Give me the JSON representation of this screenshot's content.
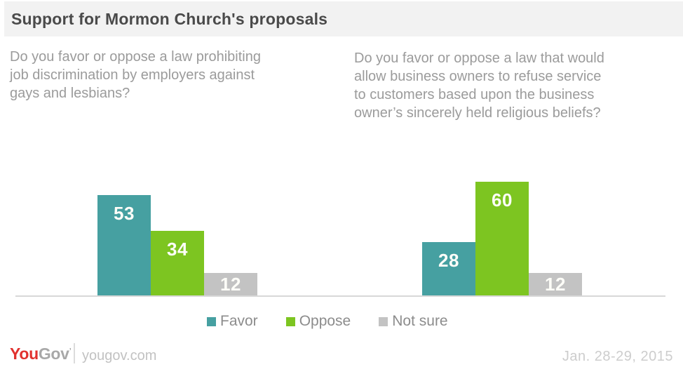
{
  "header": {
    "title": "Support for Mormon Church's proposals"
  },
  "questions": {
    "left": {
      "lines": [
        "Do you favor or oppose a law prohibiting",
        "job discrimination by employers against",
        "gays and lesbians?"
      ]
    },
    "right": {
      "lines": [
        "Do you favor or oppose a law that would",
        "allow business owners to refuse service",
        "to customers based upon the business",
        "owner’s sincerely held religious beliefs?"
      ]
    }
  },
  "chart_data": {
    "type": "bar",
    "title": "Support for Mormon Church's proposals",
    "categories": [
      "Favor",
      "Oppose",
      "Not sure"
    ],
    "series_colors": [
      "#46A0A1",
      "#7DC521",
      "#C3C3C3"
    ],
    "value_unit": "percent",
    "ylim": [
      0,
      100
    ],
    "grid": false,
    "legend_position": "bottom-center",
    "groups": [
      {
        "question": "Do you favor or oppose a law prohibiting job discrimination by employers against gays and lesbians?",
        "values": [
          53,
          34,
          12
        ]
      },
      {
        "question": "Do you favor or oppose a law that would allow business owners to refuse service to customers based upon the business owner’s sincerely held religious beliefs?",
        "values": [
          28,
          60,
          12
        ]
      }
    ]
  },
  "legend": {
    "items": [
      {
        "label": "Favor"
      },
      {
        "label": "Oppose"
      },
      {
        "label": "Not sure"
      }
    ]
  },
  "footer": {
    "logo_you": "You",
    "logo_gov": "Gov",
    "logo_mark": "’",
    "site": "yougov.com",
    "date": "Jan. 28-29, 2015"
  }
}
